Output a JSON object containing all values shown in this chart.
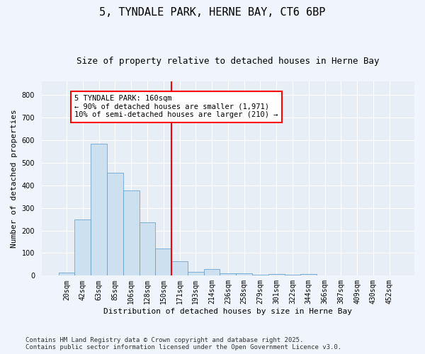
{
  "title1": "5, TYNDALE PARK, HERNE BAY, CT6 6BP",
  "title2": "Size of property relative to detached houses in Herne Bay",
  "xlabel": "Distribution of detached houses by size in Herne Bay",
  "ylabel": "Number of detached properties",
  "categories": [
    "20sqm",
    "42sqm",
    "63sqm",
    "85sqm",
    "106sqm",
    "128sqm",
    "150sqm",
    "171sqm",
    "193sqm",
    "214sqm",
    "236sqm",
    "258sqm",
    "279sqm",
    "301sqm",
    "322sqm",
    "344sqm",
    "366sqm",
    "387sqm",
    "409sqm",
    "430sqm",
    "452sqm"
  ],
  "values": [
    15,
    248,
    585,
    455,
    378,
    237,
    120,
    65,
    18,
    30,
    10,
    10,
    5,
    8,
    5,
    8,
    0,
    0,
    2,
    0,
    0
  ],
  "bar_color": "#cce0f0",
  "bar_edge_color": "#5599cc",
  "vline_x_index": 7,
  "vline_color": "red",
  "annotation_title": "5 TYNDALE PARK: 160sqm",
  "annotation_line1": "← 90% of detached houses are smaller (1,971)",
  "annotation_line2": "10% of semi-detached houses are larger (210) →",
  "footnote1": "Contains HM Land Registry data © Crown copyright and database right 2025.",
  "footnote2": "Contains public sector information licensed under the Open Government Licence v3.0.",
  "ylim": [
    0,
    860
  ],
  "yticks": [
    0,
    100,
    200,
    300,
    400,
    500,
    600,
    700,
    800
  ],
  "fig_bg": "#f0f4fc",
  "ax_bg": "#e8eef5",
  "grid_color": "#ffffff"
}
